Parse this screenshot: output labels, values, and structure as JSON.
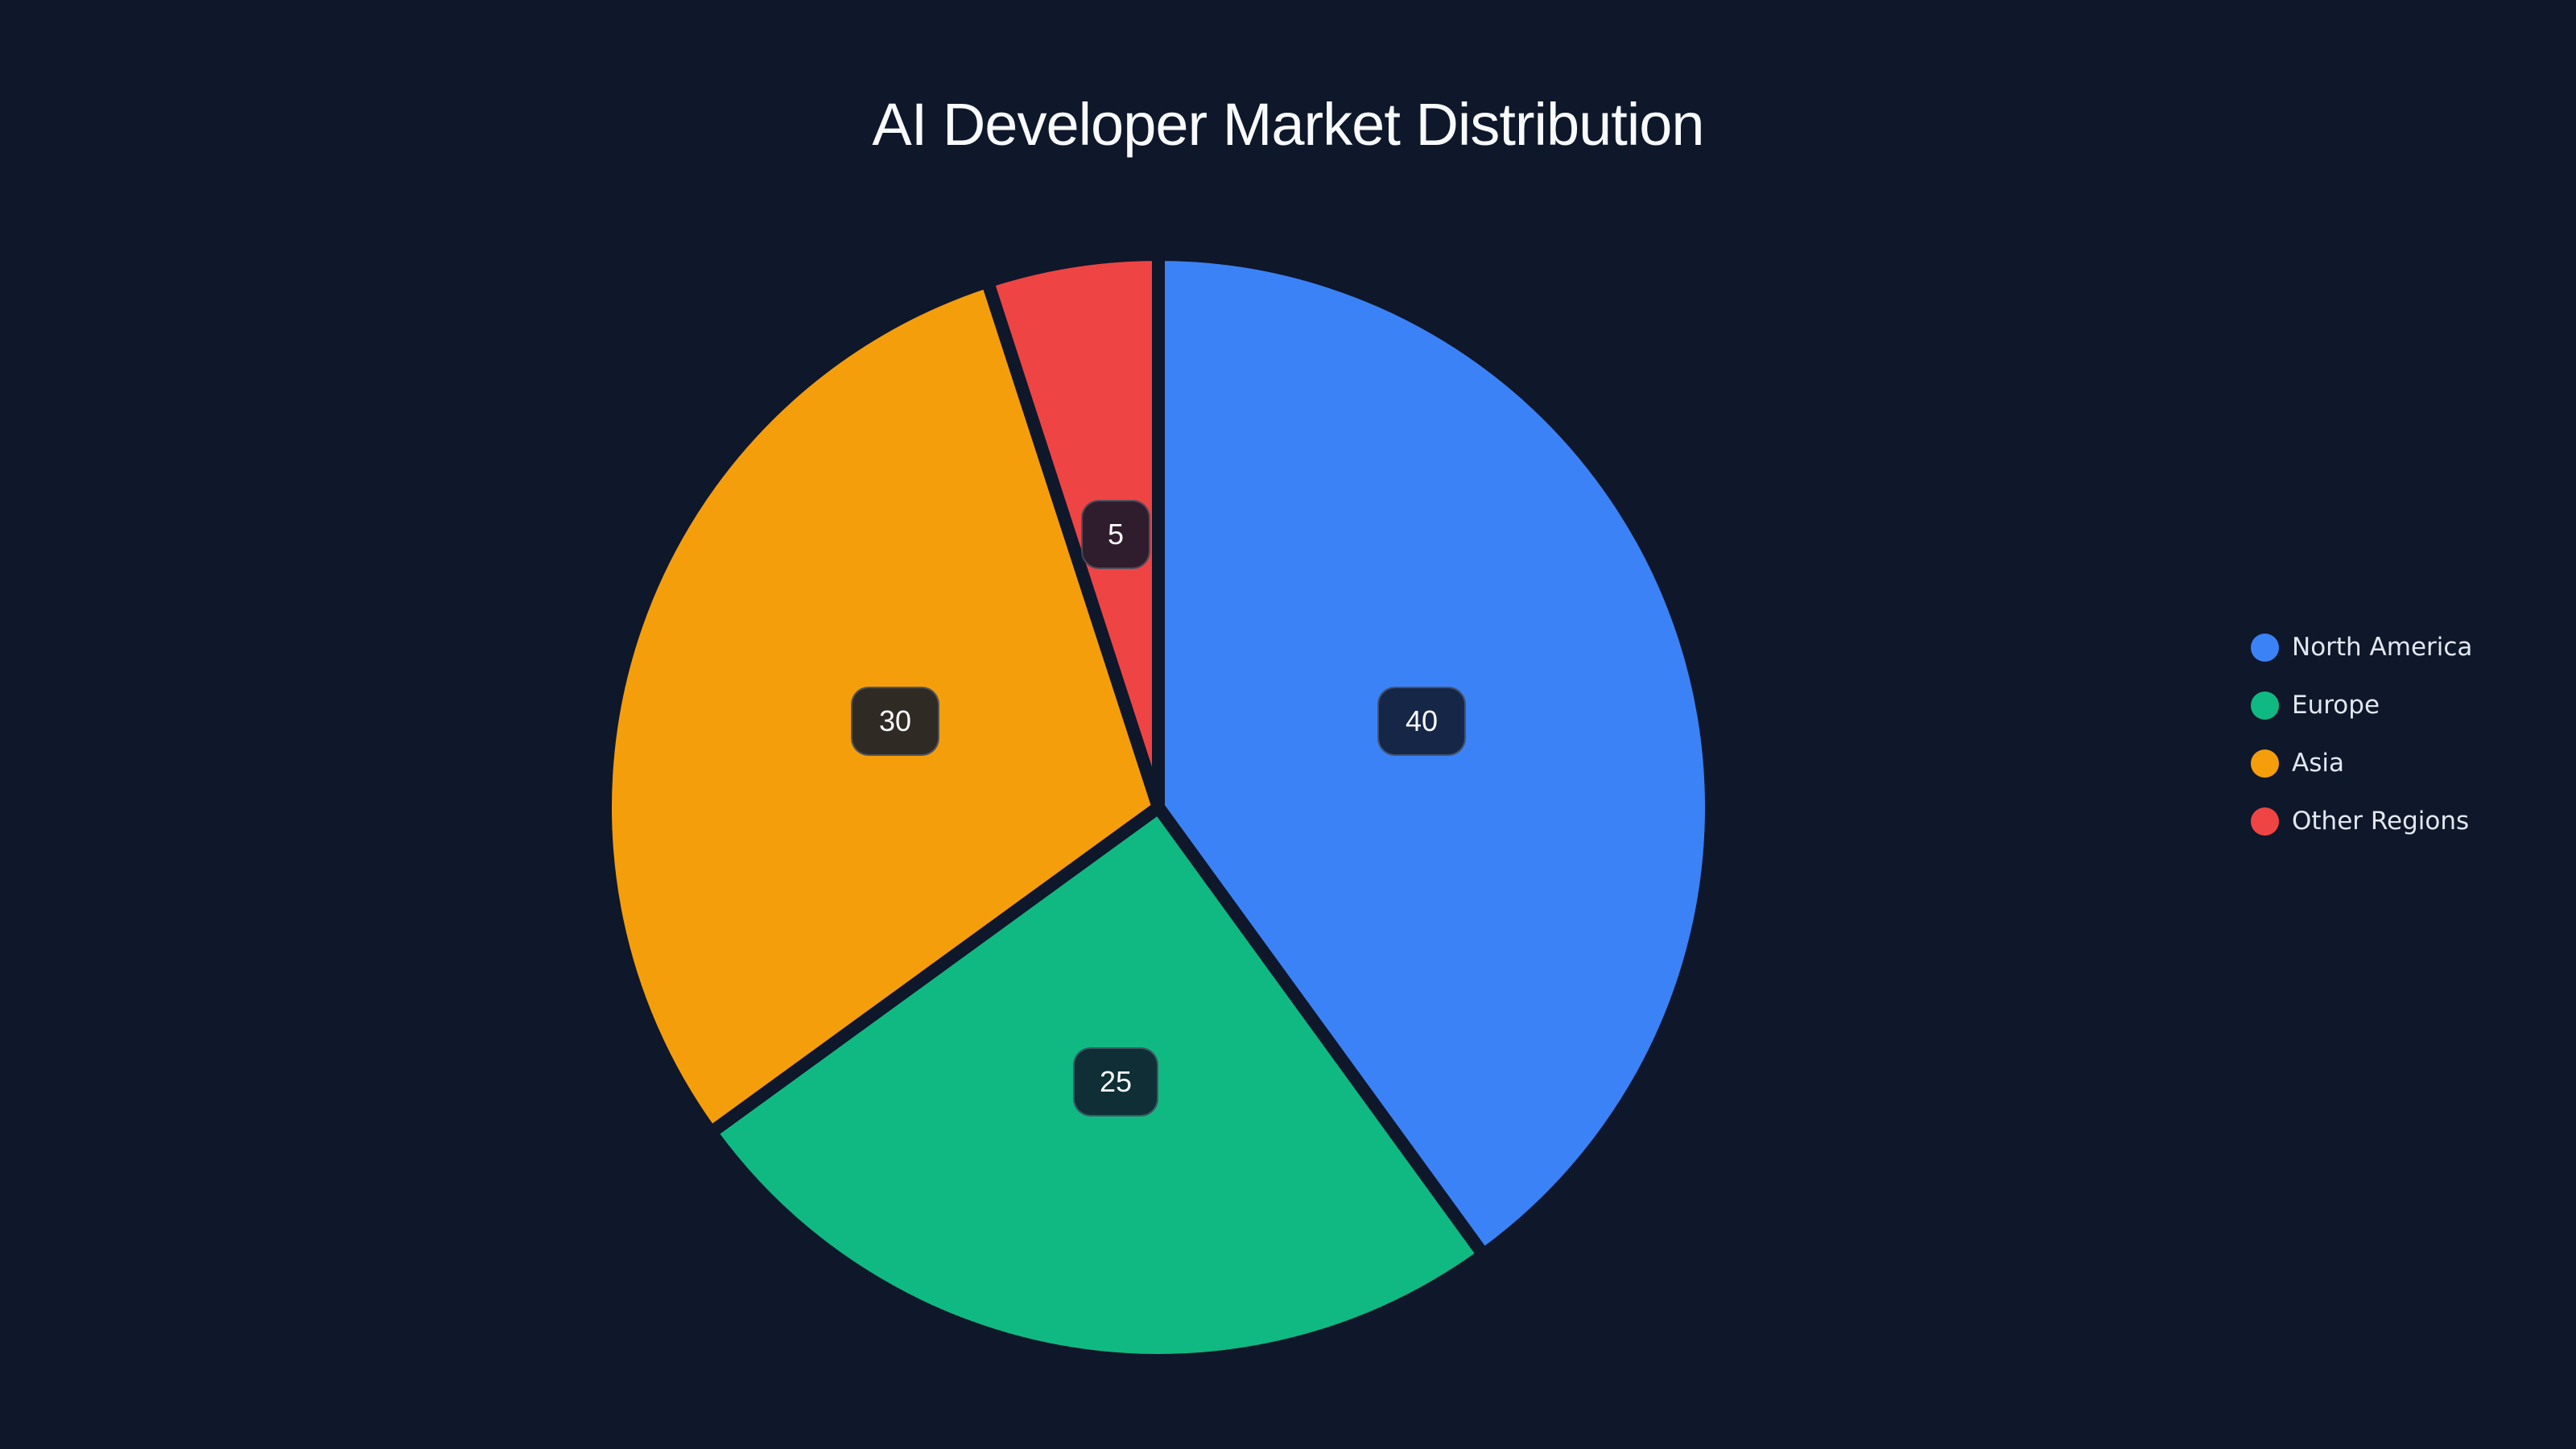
{
  "title": "AI Developer Market Distribution",
  "chart_data": {
    "type": "pie",
    "title": "AI Developer Market Distribution",
    "categories": [
      "North America",
      "Europe",
      "Asia",
      "Other Regions"
    ],
    "values": [
      40,
      25,
      30,
      5
    ],
    "colors": [
      "#3b82f6",
      "#10b981",
      "#f59e0b",
      "#ef4444"
    ],
    "start_angle": "12 o'clock, clockwise",
    "data_labels": [
      "40",
      "25",
      "30",
      "5"
    ],
    "legend_position": "right"
  },
  "legend": [
    {
      "label": "North America",
      "color": "#3b82f6"
    },
    {
      "label": "Europe",
      "color": "#10b981"
    },
    {
      "label": "Asia",
      "color": "#f59e0b"
    },
    {
      "label": "Other Regions",
      "color": "#ef4444"
    }
  ],
  "labels": {
    "north_america": "40",
    "europe": "25",
    "asia": "30",
    "other": "5"
  }
}
